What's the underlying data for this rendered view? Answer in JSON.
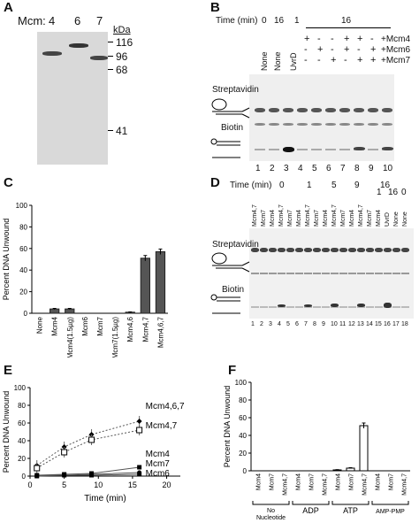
{
  "panels": {
    "A": {
      "letter": "A",
      "row_label": "Mcm:",
      "lanes": [
        "4",
        "6",
        "7"
      ],
      "kda_label": "kDa",
      "markers": [
        "116",
        "96",
        "68",
        "41"
      ]
    },
    "B": {
      "letter": "B",
      "time_label": "Time (min)",
      "times": [
        "0",
        "16",
        "1",
        "16"
      ],
      "lane_labels": [
        "None",
        "None",
        "UvrD"
      ],
      "plus_minus_rows": [
        {
          "name": "+Mcm4",
          "signs": [
            "+",
            "-",
            "-",
            "+",
            "+",
            "-",
            "+"
          ]
        },
        {
          "name": "+Mcm6",
          "signs": [
            "-",
            "+",
            "-",
            "+",
            "-",
            "+",
            "+"
          ]
        },
        {
          "name": "+Mcm7",
          "signs": [
            "-",
            "-",
            "+",
            "-",
            "+",
            "+",
            "+"
          ]
        }
      ],
      "labels": [
        "Streptavidin",
        "Biotin"
      ],
      "lane_numbers": [
        "1",
        "2",
        "3",
        "4",
        "5",
        "6",
        "7",
        "8",
        "9",
        "10"
      ]
    },
    "C": {
      "letter": "C",
      "chart_data": {
        "type": "bar",
        "ylabel": "Percent DNA Unwound",
        "categories": [
          "None",
          "Mcm4",
          "Mcm4(1.5µg)",
          "Mcm6",
          "Mcm7",
          "Mcm7(1.5µg)",
          "Mcm4,6",
          "Mcm4,7",
          "Mcm4,6,7"
        ],
        "values": [
          0,
          4,
          4,
          0,
          0,
          0,
          1,
          51,
          57
        ],
        "errors": [
          0,
          0.5,
          0.5,
          0,
          0,
          0,
          0.3,
          2.5,
          2.5
        ],
        "ylim": [
          0,
          100
        ],
        "yticks": [
          "0",
          "20",
          "40",
          "60",
          "80",
          "100"
        ]
      }
    },
    "D": {
      "letter": "D",
      "time_label": "Time (min)",
      "times": [
        "0",
        "1",
        "5",
        "9",
        "16",
        "1",
        "16",
        "0"
      ],
      "lane_labels": [
        "Mcm4,7",
        "Mcm7",
        "Mcm4",
        "Mcm4,7",
        "Mcm7",
        "Mcm4",
        "Mcm4,7",
        "Mcm7",
        "Mcm4",
        "Mcm4,7",
        "Mcm7",
        "Mcm4",
        "Mcm4,7",
        "Mcm7",
        "Mcm4",
        "UvrD",
        "None",
        "None"
      ],
      "labels": [
        "Streptavidin",
        "Biotin"
      ],
      "lane_numbers": [
        "1",
        "2",
        "3",
        "4",
        "5",
        "6",
        "7",
        "8",
        "9",
        "10",
        "11",
        "12",
        "13",
        "14",
        "15",
        "16",
        "17",
        "18"
      ]
    },
    "E": {
      "letter": "E",
      "chart_data": {
        "type": "line",
        "xlabel": "Time (min)",
        "ylabel": "Percent DNA Unwound",
        "x": [
          1,
          5,
          9,
          16
        ],
        "xlim": [
          0,
          22
        ],
        "ylim": [
          0,
          100
        ],
        "xticks": [
          "0",
          "5",
          "10",
          "15",
          "20"
        ],
        "yticks": [
          "0",
          "20",
          "40",
          "60",
          "80",
          "100"
        ],
        "series": [
          {
            "name": "Mcm4,6,7",
            "values": [
              12,
              33,
              47,
              62
            ]
          },
          {
            "name": "Mcm4,7",
            "values": [
              9,
              27,
              41,
              52
            ]
          },
          {
            "name": "Mcm4",
            "values": [
              1,
              2,
              3,
              10
            ]
          },
          {
            "name": "Mcm7",
            "values": [
              1,
              1,
              2,
              4
            ]
          },
          {
            "name": "Mcm6",
            "values": [
              0,
              1,
              1,
              2
            ]
          }
        ]
      }
    },
    "F": {
      "letter": "F",
      "chart_data": {
        "type": "bar",
        "ylabel": "Percent DNA Unwound",
        "categories": [
          "Mcm4",
          "Mcm7",
          "Mcm4,7",
          "Mcm4",
          "Mcm7",
          "Mcm4,7",
          "Mcm4",
          "Mcm7",
          "Mcm4,7",
          "Mcm4",
          "Mcm7",
          "Mcm4,7"
        ],
        "groups": [
          "No Nucleotide",
          "ADP",
          "ATP",
          "AMP-PMP"
        ],
        "values": [
          0,
          0,
          0,
          0,
          0,
          0,
          1,
          3,
          51,
          0,
          0,
          0
        ],
        "errors": [
          0,
          0,
          0,
          0,
          0,
          0,
          0.3,
          0.5,
          3,
          0,
          0,
          0
        ],
        "ylim": [
          0,
          100
        ],
        "yticks": [
          "0",
          "20",
          "40",
          "60",
          "80",
          "100"
        ]
      }
    }
  }
}
